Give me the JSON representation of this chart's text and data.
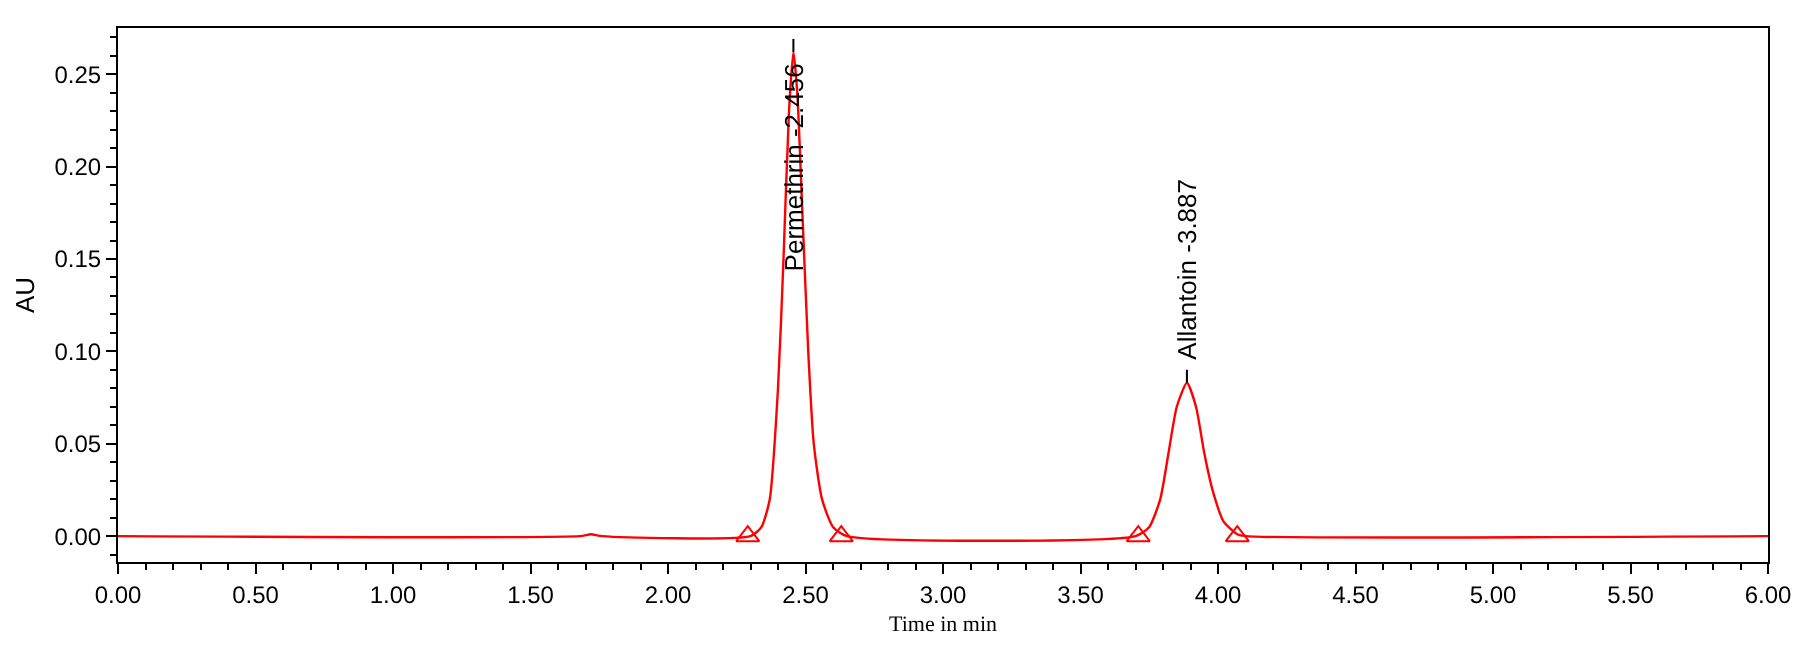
{
  "chart_data": {
    "type": "line",
    "xlabel": "Time in min",
    "ylabel": "AU",
    "xlim": [
      0,
      6
    ],
    "ylim": [
      -0.014,
      0.275
    ],
    "xticks": [
      {
        "value": 0,
        "label": "0.00"
      },
      {
        "value": 0.5,
        "label": "0.50"
      },
      {
        "value": 1,
        "label": "1.00"
      },
      {
        "value": 1.5,
        "label": "1.50"
      },
      {
        "value": 2,
        "label": "2.00"
      },
      {
        "value": 2.5,
        "label": "2.50"
      },
      {
        "value": 3,
        "label": "3.00"
      },
      {
        "value": 3.5,
        "label": "3.50"
      },
      {
        "value": 4,
        "label": "4.00"
      },
      {
        "value": 4.5,
        "label": "4.50"
      },
      {
        "value": 5,
        "label": "5.00"
      },
      {
        "value": 5.5,
        "label": "5.50"
      },
      {
        "value": 6,
        "label": "6.00"
      }
    ],
    "yticks": [
      {
        "value": 0,
        "label": "0.00"
      },
      {
        "value": 0.05,
        "label": "0.05"
      },
      {
        "value": 0.1,
        "label": "0.10"
      },
      {
        "value": 0.15,
        "label": "0.15"
      },
      {
        "value": 0.2,
        "label": "0.20"
      },
      {
        "value": 0.25,
        "label": "0.25"
      }
    ],
    "marker": "none",
    "line_style": "solid",
    "series": [
      {
        "color": "#ff0000",
        "x": [
          0,
          1.68,
          1.72,
          1.76,
          2.3,
          2.34,
          2.37,
          2.4,
          2.42,
          2.44,
          2.456,
          2.47,
          2.49,
          2.51,
          2.53,
          2.56,
          2.6,
          2.65,
          3.7,
          3.75,
          3.79,
          3.82,
          3.85,
          3.887,
          3.92,
          3.95,
          3.98,
          4.02,
          4.07,
          4.1,
          6
        ],
        "values": [
          0,
          0,
          0.001,
          0,
          0,
          0.005,
          0.02,
          0.08,
          0.15,
          0.23,
          0.262,
          0.24,
          0.17,
          0.1,
          0.05,
          0.02,
          0.005,
          0,
          0,
          0.005,
          0.02,
          0.045,
          0.07,
          0.083,
          0.07,
          0.045,
          0.025,
          0.008,
          0.001,
          0,
          0
        ]
      },
      {
        "type": "scatter",
        "marker": "triangle",
        "color": "#ff0000",
        "x": [
          2.29,
          2.63,
          3.71,
          4.07
        ],
        "values": [
          0,
          0,
          0,
          0
        ]
      }
    ],
    "annotations": [
      {
        "text": "Permethrin -2.456",
        "x": 2.456,
        "y": 0.262
      },
      {
        "text": "Allantoin -3.887",
        "x": 3.887,
        "y": 0.083
      }
    ]
  }
}
